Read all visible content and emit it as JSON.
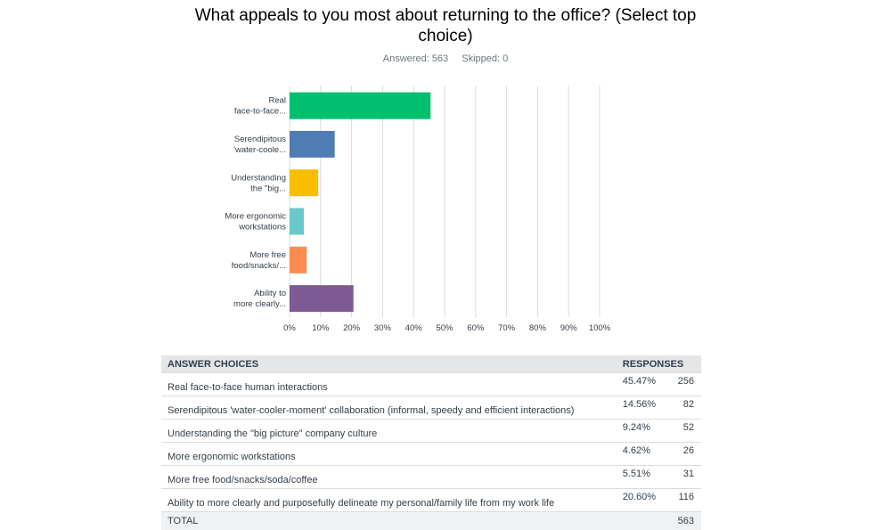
{
  "question": "What appeals to you most about returning to the office? (Select top choice)",
  "answered_label": "Answered: 563",
  "skipped_label": "Skipped: 0",
  "chart_data": {
    "type": "bar",
    "orientation": "horizontal",
    "title": "What appeals to you most about returning to the office? (Select top choice)",
    "categories": [
      [
        "Real",
        "face-to-face..."
      ],
      [
        "Serendipitous",
        "'water-coole..."
      ],
      [
        "Understanding",
        "the \"big..."
      ],
      [
        "More ergonomic",
        "workstations"
      ],
      [
        "More free",
        "food/snacks/..."
      ],
      [
        "Ability to",
        "more clearly..."
      ]
    ],
    "values": [
      45.47,
      14.56,
      9.24,
      4.62,
      5.51,
      20.6
    ],
    "colors": [
      "#00bf6f",
      "#507cb6",
      "#f9be00",
      "#6bc8cd",
      "#ff8b4f",
      "#7d5a94"
    ],
    "xlim": [
      0,
      100
    ],
    "xticks": [
      "0%",
      "10%",
      "20%",
      "30%",
      "40%",
      "50%",
      "60%",
      "70%",
      "80%",
      "90%",
      "100%"
    ],
    "xlabel": "",
    "ylabel": "",
    "grid": true
  },
  "table": {
    "header_choice": "ANSWER CHOICES",
    "header_responses": "RESPONSES",
    "rows": [
      {
        "choice": "Real face-to-face human interactions",
        "percent": "45.47%",
        "count": "256"
      },
      {
        "choice": "Serendipitous 'water-cooler-moment' collaboration (informal, speedy and efficient interactions)",
        "percent": "14.56%",
        "count": "82"
      },
      {
        "choice": "Understanding the \"big picture\" company culture",
        "percent": "9.24%",
        "count": "52"
      },
      {
        "choice": "More ergonomic workstations",
        "percent": "4.62%",
        "count": "26"
      },
      {
        "choice": "More free food/snacks/soda/coffee",
        "percent": "5.51%",
        "count": "31"
      },
      {
        "choice": "Ability to more clearly and purposefully delineate my personal/family life from my work life",
        "percent": "20.60%",
        "count": "116"
      }
    ],
    "total_label": "TOTAL",
    "total_count": "563"
  }
}
